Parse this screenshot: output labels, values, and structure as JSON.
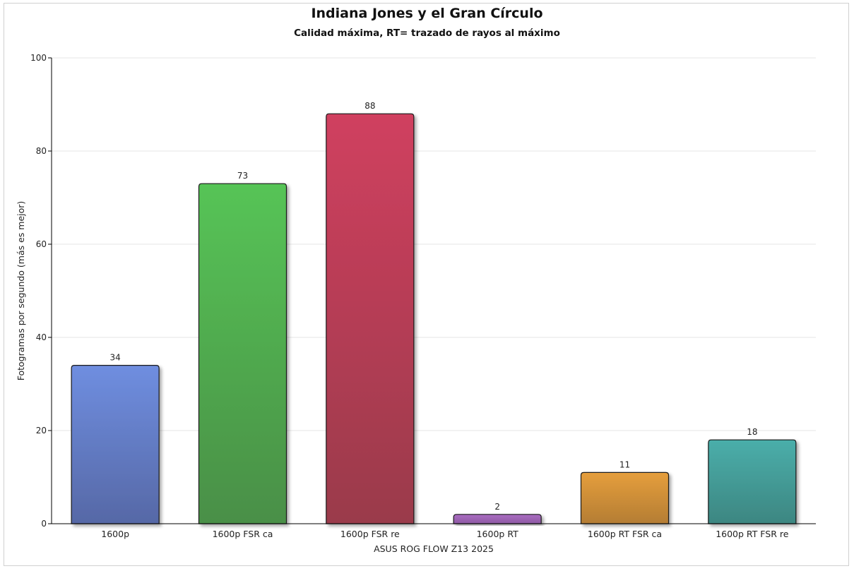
{
  "chart_data": {
    "type": "bar",
    "title": "Indiana Jones y el Gran Círculo",
    "subtitle": "Calidad máxima, RT= trazado de rayos al máximo",
    "xlabel": "ASUS ROG FLOW Z13 2025",
    "ylabel": "Fotogramas por segundo (más es mejor)",
    "ylim": [
      0,
      100
    ],
    "yticks": [
      0,
      20,
      40,
      60,
      80,
      100
    ],
    "grid": true,
    "categories": [
      "1600p",
      "1600p FSR ca",
      "1600p FSR  re",
      "1600p RT",
      "1600p RT FSR ca",
      "1600p RT FSR re"
    ],
    "values": [
      34,
      73,
      88,
      2,
      11,
      18
    ],
    "colors": [
      [
        "#6f8ee0",
        "#5668a6"
      ],
      [
        "#56c456",
        "#4a8f47"
      ],
      [
        "#d0405f",
        "#9a3a4b"
      ],
      [
        "#aa6cc2",
        "#8e5aa4"
      ],
      [
        "#e59e3c",
        "#b47d34"
      ],
      [
        "#4aaeaa",
        "#3d8681"
      ]
    ]
  }
}
